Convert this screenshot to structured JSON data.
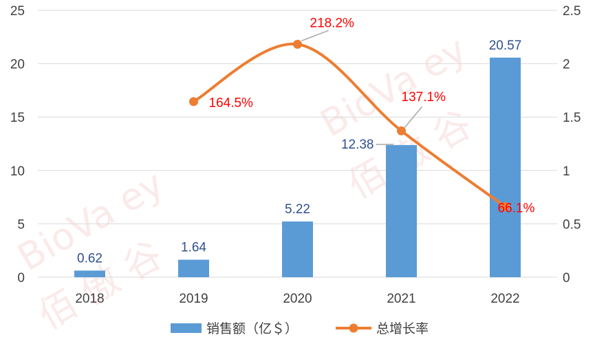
{
  "watermark": {
    "brand": "BioVa ey",
    "chinese": "佰 傲 谷"
  },
  "chart_data": {
    "type": "bar",
    "categories": [
      "2018",
      "2019",
      "2020",
      "2021",
      "2022"
    ],
    "series": [
      {
        "name": "销售额（亿＄）",
        "type": "bar",
        "axis": "left",
        "values": [
          0.62,
          1.64,
          5.22,
          12.38,
          20.57
        ],
        "labels": [
          "0.62",
          "1.64",
          "5.22",
          "12.38",
          "20.57"
        ],
        "color": "#5b9bd5"
      },
      {
        "name": "总增长率",
        "type": "line",
        "axis": "right",
        "values": [
          null,
          1.645,
          2.182,
          1.371,
          0.661
        ],
        "labels": [
          "",
          "164.5%",
          "218.2%",
          "137.1%",
          "66.1%"
        ],
        "color": "#ed7d31",
        "label_color": "#ff0000"
      }
    ],
    "y_left": {
      "min": 0,
      "max": 25,
      "ticks": [
        "0",
        "5",
        "10",
        "15",
        "20",
        "25"
      ]
    },
    "y_right": {
      "min": 0,
      "max": 2.5,
      "ticks": [
        "0",
        "0.5",
        "1",
        "1.5",
        "2",
        "2.5"
      ]
    },
    "grid": true,
    "legend_position": "bottom",
    "title": "",
    "xlabel": "",
    "ylabel": ""
  }
}
